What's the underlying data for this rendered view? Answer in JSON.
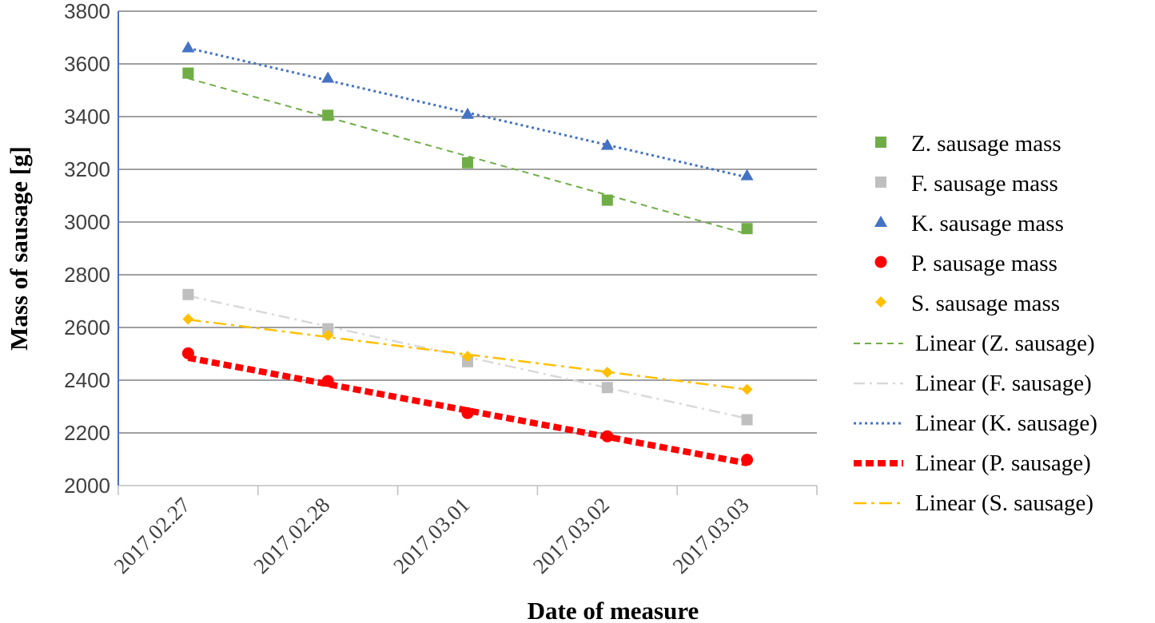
{
  "chart_data": {
    "type": "scatter",
    "title": "",
    "xlabel": "Date of measure",
    "ylabel": "Mass of sausage [g]",
    "categories": [
      "2017.02.27",
      "2017.02.28",
      "2017.03.01",
      "2017.03.02",
      "2017.03.03"
    ],
    "ylim": [
      2000,
      3800
    ],
    "yticks": [
      2000,
      2200,
      2400,
      2600,
      2800,
      3000,
      3200,
      3400,
      3600,
      3800
    ],
    "grid": true,
    "legend_position": "right",
    "series": [
      {
        "name": "Z. sausage mass",
        "marker": "square",
        "color": "#70ad47",
        "values": [
          3565,
          3405,
          3225,
          3083,
          2975
        ]
      },
      {
        "name": "F. sausage mass",
        "marker": "square",
        "color": "#bfbfbf",
        "values": [
          2725,
          2595,
          2470,
          2372,
          2250
        ]
      },
      {
        "name": "K. sausage mass",
        "marker": "triangle",
        "color": "#4472c4",
        "values": [
          3662,
          3547,
          3410,
          3292,
          3177
        ]
      },
      {
        "name": "P. sausage mass",
        "marker": "circle",
        "color": "#ff0000",
        "values": [
          2502,
          2397,
          2275,
          2187,
          2098
        ]
      },
      {
        "name": "S. sausage mass",
        "marker": "diamond",
        "color": "#ffc000",
        "values": [
          2632,
          2570,
          2490,
          2430,
          2365
        ]
      }
    ],
    "trendlines": [
      {
        "name": "Linear (Z. sausage)",
        "series": 0,
        "color": "#70ad47",
        "dash": "8,6",
        "width": 2,
        "start": 3545,
        "end": 2955
      },
      {
        "name": "Linear (F. sausage)",
        "series": 1,
        "color": "#d9d9d9",
        "dash": "14,6,3,6",
        "width": 2.5,
        "start": 2720,
        "end": 2255
      },
      {
        "name": "Linear (K. sausage)",
        "series": 2,
        "color": "#4472c4",
        "dash": "3,4",
        "width": 3,
        "start": 3660,
        "end": 3170
      },
      {
        "name": "Linear (P. sausage)",
        "series": 3,
        "color": "#ff0000",
        "dash": "10,5",
        "width": 8,
        "start": 2485,
        "end": 2085
      },
      {
        "name": "Linear (S. sausage)",
        "series": 4,
        "color": "#ffc000",
        "dash": "16,6,4,6",
        "width": 2.5,
        "start": 2630,
        "end": 2365
      }
    ]
  }
}
